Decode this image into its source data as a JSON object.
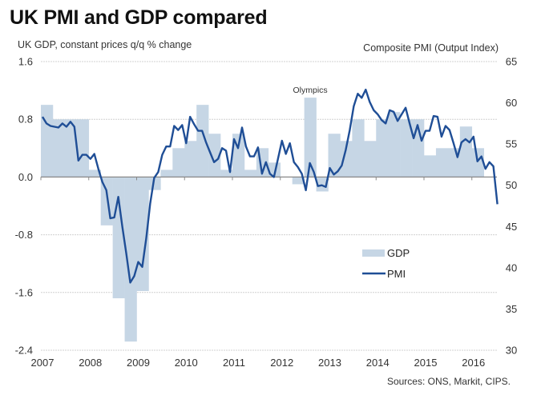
{
  "chart_data": {
    "type": "bar+line",
    "title": "UK PMI and GDP compared",
    "ylabel_left": "UK GDP, constant prices q/q % change",
    "ylabel_right": "Composite PMI (Output Index)",
    "source": "Sources: ONS, Markit, CIPS.",
    "annotation": "Olympics",
    "annotation_target": "2012 Q3",
    "ylim_left": [
      -2.4,
      1.6
    ],
    "yticks_left": [
      "1.6",
      "0.8",
      "0.0",
      "-0.8",
      "-1.6",
      "-2.4"
    ],
    "yticks_left_values": [
      1.6,
      0.8,
      0.0,
      -0.8,
      -1.6,
      -2.4
    ],
    "ylim_right": [
      30,
      65
    ],
    "yticks_right": [
      "65",
      "60",
      "55",
      "50",
      "45",
      "40",
      "35",
      "30"
    ],
    "yticks_right_values": [
      65,
      60,
      55,
      50,
      45,
      40,
      35,
      30
    ],
    "xticks": [
      "2007",
      "2008",
      "2009",
      "2010",
      "2011",
      "2012",
      "2013",
      "2014",
      "2015",
      "2016"
    ],
    "x_start": "2007-01",
    "grid": true,
    "legend": {
      "position": "bottom-right",
      "entries": [
        "GDP",
        "PMI"
      ]
    },
    "colors": {
      "gdp": "#c6d6e5",
      "pmi": "#1f4e96",
      "grid": "#d0d0d0",
      "axis": "#888888"
    },
    "series": [
      {
        "name": "GDP",
        "type": "bar",
        "axis": "left",
        "frequency": "quarterly",
        "start": "2007 Q1",
        "values": [
          1.0,
          0.8,
          0.8,
          0.8,
          0.1,
          -0.67,
          -1.68,
          -2.28,
          -1.58,
          -0.18,
          0.1,
          0.4,
          0.5,
          1.0,
          0.6,
          0.1,
          0.6,
          0.1,
          0.4,
          0.2,
          0.0,
          -0.1,
          1.1,
          -0.2,
          0.6,
          0.5,
          0.8,
          0.5,
          0.8,
          0.9,
          0.8,
          0.8,
          0.3,
          0.4,
          0.4,
          0.7,
          0.4
        ]
      },
      {
        "name": "PMI",
        "type": "line",
        "axis": "right",
        "frequency": "monthly",
        "start": "2007-01",
        "values": [
          58.3,
          57.5,
          57.2,
          57.1,
          57.0,
          57.5,
          57.1,
          57.7,
          57.1,
          53.0,
          53.7,
          53.7,
          53.2,
          53.8,
          52.0,
          50.4,
          49.4,
          46.0,
          46.1,
          48.6,
          45.0,
          41.7,
          38.2,
          39.0,
          40.7,
          40.1,
          43.6,
          47.8,
          50.9,
          51.6,
          53.7,
          54.7,
          54.7,
          57.2,
          56.7,
          57.3,
          55.1,
          58.3,
          57.4,
          56.6,
          56.6,
          55.2,
          54.0,
          52.8,
          53.2,
          54.5,
          54.2,
          51.6,
          55.6,
          54.5,
          57.0,
          54.7,
          53.5,
          53.5,
          54.6,
          51.4,
          52.8,
          51.4,
          51.0,
          53.2,
          55.4,
          53.8,
          55.1,
          52.8,
          52.2,
          51.4,
          49.4,
          52.7,
          51.6,
          49.9,
          50.0,
          49.8,
          52.1,
          51.3,
          51.7,
          52.4,
          54.3,
          56.7,
          59.6,
          61.1,
          60.6,
          61.6,
          60.1,
          59.1,
          58.6,
          57.9,
          57.5,
          59.1,
          58.9,
          57.8,
          58.6,
          59.4,
          57.5,
          55.7,
          57.3,
          55.4,
          56.6,
          56.6,
          58.4,
          58.3,
          55.9,
          57.2,
          56.7,
          55.1,
          53.4,
          55.2,
          55.6,
          55.2,
          55.9,
          52.9,
          53.5,
          52.0,
          52.8,
          52.3,
          47.7
        ]
      }
    ]
  }
}
